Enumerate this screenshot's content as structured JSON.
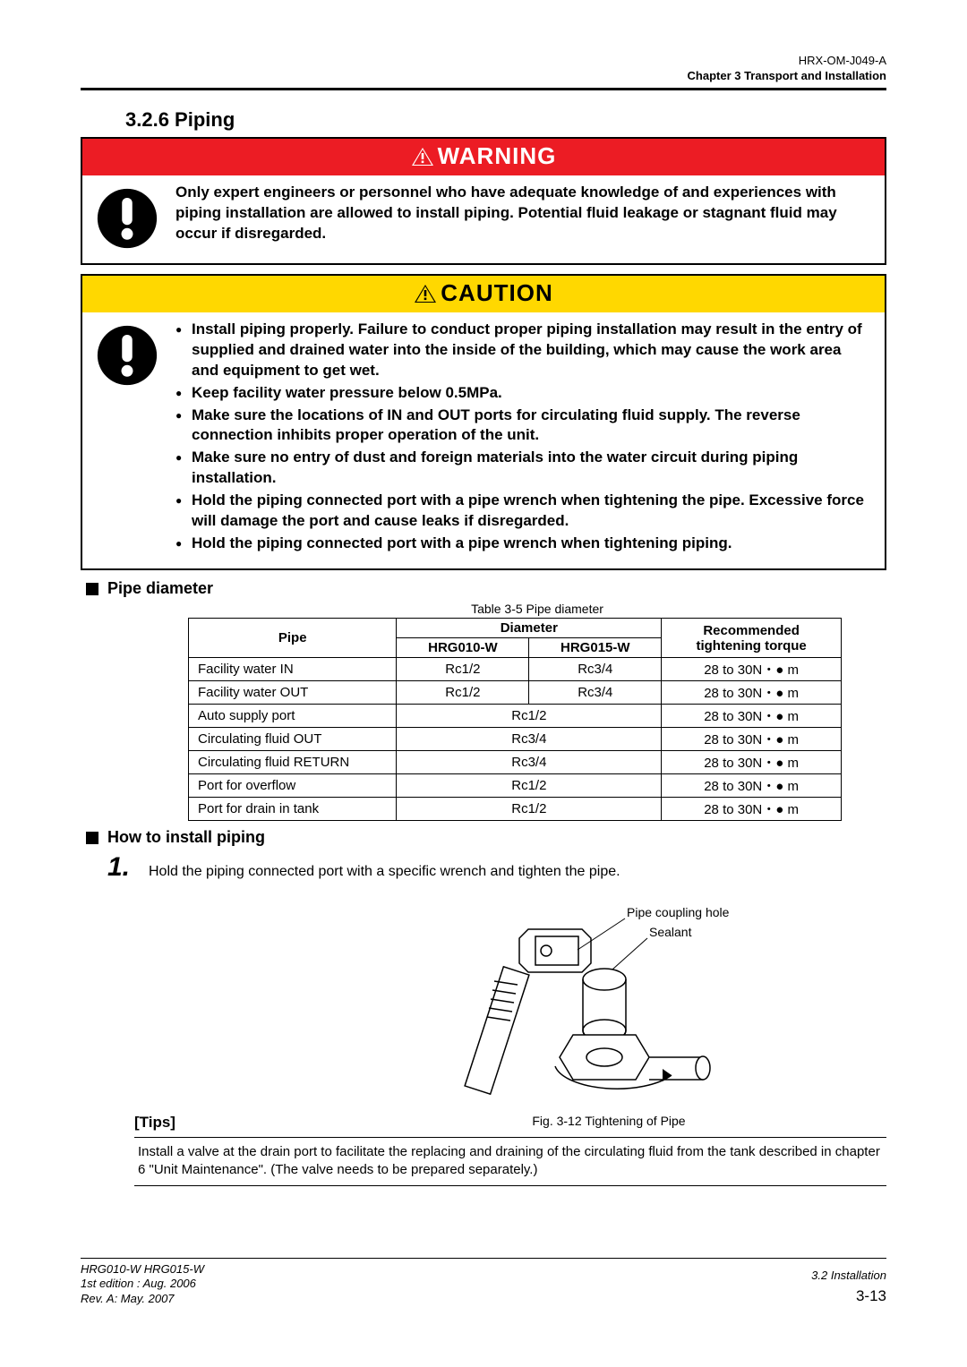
{
  "header": {
    "doc_code": "HRX-OM-J049-A",
    "chapter_line": "Chapter 3   Transport and Installation"
  },
  "section": {
    "number_title": "3.2.6   Piping"
  },
  "warning": {
    "banner_text": "WARNING",
    "banner_bg": "#ec1c24",
    "banner_fg": "#ffffff",
    "body": "Only expert engineers or personnel who have adequate knowledge of and experiences with piping installation are allowed to install piping. Potential fluid leakage or stagnant fluid may occur if disregarded."
  },
  "caution": {
    "banner_text": "CAUTION",
    "banner_bg": "#ffd800",
    "banner_fg": "#000000",
    "items": [
      "Install piping properly. Failure to conduct proper piping installation may result in the entry of supplied and drained water into the inside of the building, which may cause the work area and equipment to get wet.",
      "Keep facility water pressure below 0.5MPa.",
      "Make sure the locations of IN and OUT ports for circulating fluid supply. The reverse connection inhibits proper operation of the unit.",
      "Make sure no entry of dust and foreign materials into the water circuit during piping installation.",
      "Hold the piping connected port with a pipe wrench when tightening the pipe. Excessive force will damage the port and cause leaks if disregarded.",
      "Hold the piping connected port with a pipe wrench when tightening piping."
    ]
  },
  "pipe_section": {
    "heading": "Pipe diameter",
    "table_caption": "Table 3-5   Pipe diameter",
    "col_pipe": "Pipe",
    "col_diameter": "Diameter",
    "col_hrg010": "HRG010-W",
    "col_hrg015": "HRG015-W",
    "col_torque": "Recommended tightening torque",
    "rows": [
      {
        "pipe": "Facility water IN",
        "d010": "Rc1/2",
        "d015": "Rc3/4",
        "torque": "28 to 30N・● m",
        "merged": false
      },
      {
        "pipe": "Facility water OUT",
        "d010": "Rc1/2",
        "d015": "Rc3/4",
        "torque": "28 to 30N・● m",
        "merged": false
      },
      {
        "pipe": "Auto supply port",
        "dboth": "Rc1/2",
        "torque": "28 to 30N・● m",
        "merged": true
      },
      {
        "pipe": "Circulating fluid OUT",
        "dboth": "Rc3/4",
        "torque": "28 to 30N・● m",
        "merged": true
      },
      {
        "pipe": "Circulating fluid RETURN",
        "dboth": "Rc3/4",
        "torque": "28 to 30N・● m",
        "merged": true
      },
      {
        "pipe": "Port for overflow",
        "dboth": "Rc1/2",
        "torque": "28 to 30N・● m",
        "merged": true
      },
      {
        "pipe": "Port for drain in tank",
        "dboth": "Rc1/2",
        "torque": "28 to 30N・● m",
        "merged": true
      }
    ]
  },
  "install": {
    "heading": "How to install piping",
    "step_num": "1.",
    "step_text": "Hold the piping connected port with a specific wrench and tighten the pipe.",
    "fig_label_coupling": "Pipe coupling hole",
    "fig_label_sealant": "Sealant",
    "fig_caption": "Fig. 3-12   Tightening of Pipe",
    "tips_label": "[Tips]",
    "tips_text": "Install a valve at the drain port to facilitate the replacing and draining of the circulating fluid from the tank described in chapter 6 \"Unit Maintenance\". (The valve needs to be prepared separately.)"
  },
  "footer": {
    "model": "HRG010-W HRG015-W",
    "edition": "1st edition : Aug. 2006",
    "rev": "Rev. A: May. 2007",
    "section_ref": "3.2 Installation",
    "page_num": "3-13"
  }
}
